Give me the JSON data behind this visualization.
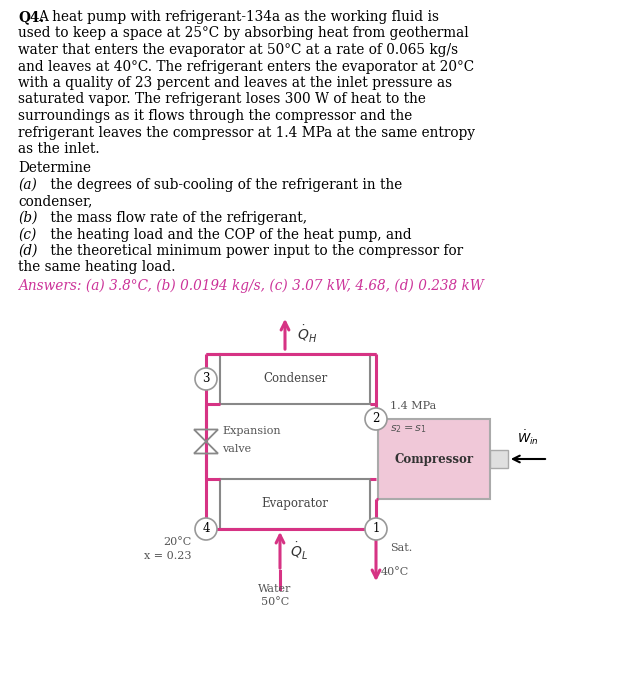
{
  "pipe_color": "#d63384",
  "comp_fill": "#f0c8d8",
  "box_edge": "#999999",
  "text_color": "#333333",
  "answers_color": "#cc3399",
  "paragraph": "A heat pump with refrigerant-134a as the working fluid is used to keep a space at 25°C by absorbing heat from geothermal water that enters the evaporator at 50°C at a rate of 0.065 kg/s and leaves at 40°C. The refrigerant enters the evaporator at 20°C with a quality of 23 percent and leaves at the inlet pressure as saturated vapor. The refrigerant loses 300 W of heat to the surroundings as it flows through the compressor and the refrigerant leaves the compressor at 1.4 MPa at the same entropy as the inlet.",
  "determine": "Determine",
  "item_a": "(a)  the degrees of sub-cooling of the refrigerant in the condenser,",
  "item_b": "(b)  the mass flow rate of the refrigerant,",
  "item_c": "(c)  the heating load and the COP of the heat pump, and",
  "item_d": "(d)  the theoretical minimum power input to the compressor for the same heating load.",
  "answers": "Answers: (a) 3.8°C, (b) 0.0194 kg/s, (c) 3.07 kW, 4.68, (d) 0.238 kW"
}
